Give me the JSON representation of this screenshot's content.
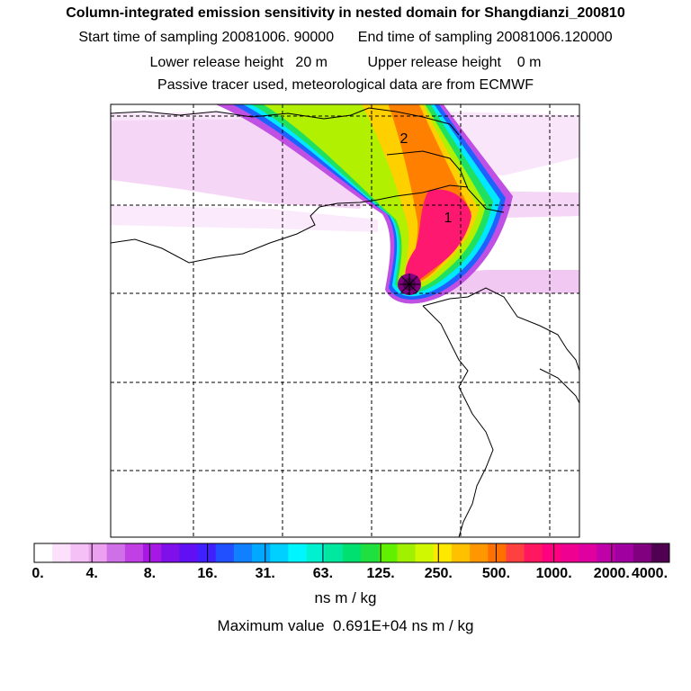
{
  "header": {
    "title": "Column-integrated emission sensitivity in nested domain for Shangdianzi_200810",
    "start_label": "Start time of sampling",
    "start_value": "20081006. 90000",
    "end_label": "End time of sampling",
    "end_value": "20081006.120000",
    "lower_label": "Lower release height",
    "lower_value": "20 m",
    "upper_label": "Upper release height",
    "upper_value": "0 m",
    "tracer_line": "Passive tracer used, meteorological data are from ECMWF"
  },
  "map": {
    "labels": [
      {
        "text": "1",
        "id": "plume-label-1"
      },
      {
        "text": "2",
        "id": "plume-label-2"
      }
    ]
  },
  "colorbar": {
    "ticks": [
      "0.",
      "4.",
      "8.",
      "16.",
      "31.",
      "63.",
      "125.",
      "250.",
      "500.",
      "1000.",
      "2000.",
      "4000."
    ],
    "colors": [
      "#ffffff",
      "#fce0fc",
      "#f4c0f6",
      "#eca0f0",
      "#d070e8",
      "#c040e4",
      "#a818e4",
      "#8010ea",
      "#6010f2",
      "#4020ff",
      "#2050ff",
      "#1080ff",
      "#00a8ff",
      "#00d0ff",
      "#00f6ff",
      "#00f0d0",
      "#00e8a0",
      "#00e070",
      "#20e040",
      "#60f000",
      "#a0f000",
      "#d0f800",
      "#ffe800",
      "#ffc000",
      "#ff9800",
      "#ff7000",
      "#ff4040",
      "#ff1860",
      "#ff0080",
      "#f00090",
      "#e000a0",
      "#c000a8",
      "#a000a0",
      "#800080",
      "#500050"
    ],
    "units": "ns m / kg",
    "max_label": "Maximum value",
    "max_value": "0.691E+04 ns m / kg"
  }
}
